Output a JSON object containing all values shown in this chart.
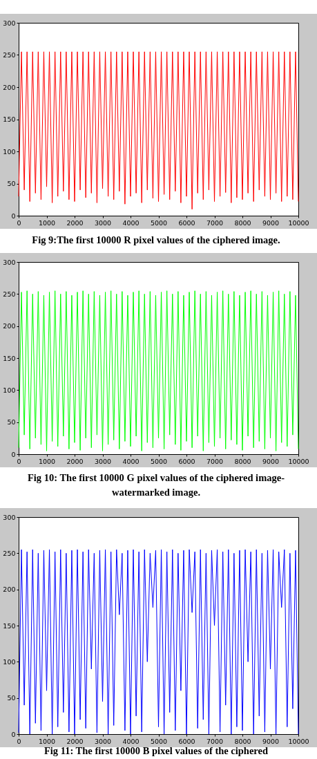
{
  "chart_data": [
    {
      "type": "line",
      "title": "Fig 9:The first 10000 R pixel values of the ciphered image.",
      "xlim": [
        0,
        10000
      ],
      "xticks": [
        0,
        1000,
        2000,
        3000,
        4000,
        5000,
        6000,
        7000,
        8000,
        9000,
        10000
      ],
      "ylim": [
        0,
        300
      ],
      "yticks": [
        0,
        50,
        100,
        150,
        200,
        250,
        300
      ],
      "grid": false,
      "x": [
        0,
        100,
        200,
        300,
        400,
        500,
        600,
        700,
        800,
        900,
        1000,
        1100,
        1200,
        1300,
        1400,
        1500,
        1600,
        1700,
        1800,
        1900,
        2000,
        2100,
        2200,
        2300,
        2400,
        2500,
        2600,
        2700,
        2800,
        2900,
        3000,
        3100,
        3200,
        3300,
        3400,
        3500,
        3600,
        3700,
        3800,
        3900,
        4000,
        4100,
        4200,
        4300,
        4400,
        4500,
        4600,
        4700,
        4800,
        4900,
        5000,
        5100,
        5200,
        5300,
        5400,
        5500,
        5600,
        5700,
        5800,
        5900,
        6000,
        6100,
        6200,
        6300,
        6400,
        6500,
        6600,
        6700,
        6800,
        6900,
        7000,
        7100,
        7200,
        7300,
        7400,
        7500,
        7600,
        7700,
        7800,
        7900,
        8000,
        8100,
        8200,
        8300,
        8400,
        8500,
        8600,
        8700,
        8800,
        8900,
        9000,
        9100,
        9200,
        9300,
        9400,
        9500,
        9600,
        9700,
        9800,
        9900,
        10000
      ],
      "series": [
        {
          "color": "#ff0000",
          "values": [
            30,
            255,
            40,
            255,
            22,
            255,
            35,
            255,
            25,
            255,
            45,
            255,
            20,
            255,
            30,
            255,
            38,
            255,
            25,
            255,
            22,
            255,
            40,
            255,
            28,
            255,
            35,
            255,
            20,
            255,
            42,
            255,
            30,
            255,
            25,
            255,
            38,
            255,
            18,
            255,
            30,
            255,
            35,
            255,
            20,
            255,
            40,
            255,
            27,
            255,
            22,
            255,
            33,
            255,
            25,
            255,
            38,
            255,
            20,
            255,
            30,
            255,
            10,
            255,
            35,
            255,
            25,
            255,
            40,
            255,
            22,
            255,
            30,
            255,
            36,
            255,
            20,
            255,
            28,
            255,
            25,
            255,
            35,
            255,
            22,
            255,
            40,
            255,
            30,
            255,
            25,
            255,
            35,
            255,
            22,
            255,
            30,
            255,
            25,
            255,
            22
          ]
        }
      ]
    },
    {
      "type": "line",
      "title": "Fig 10: The first 10000 G pixel values of the ciphered image-watermarked image.",
      "xlim": [
        0,
        10000
      ],
      "xticks": [
        0,
        1000,
        2000,
        3000,
        4000,
        5000,
        6000,
        7000,
        8000,
        9000,
        10000
      ],
      "ylim": [
        0,
        300
      ],
      "yticks": [
        0,
        50,
        100,
        150,
        200,
        250,
        300
      ],
      "grid": false,
      "x": [
        0,
        100,
        200,
        300,
        400,
        500,
        600,
        700,
        800,
        900,
        1000,
        1100,
        1200,
        1300,
        1400,
        1500,
        1600,
        1700,
        1800,
        1900,
        2000,
        2100,
        2200,
        2300,
        2400,
        2500,
        2600,
        2700,
        2800,
        2900,
        3000,
        3100,
        3200,
        3300,
        3400,
        3500,
        3600,
        3700,
        3800,
        3900,
        4000,
        4100,
        4200,
        4300,
        4400,
        4500,
        4600,
        4700,
        4800,
        4900,
        5000,
        5100,
        5200,
        5300,
        5400,
        5500,
        5600,
        5700,
        5800,
        5900,
        6000,
        6100,
        6200,
        6300,
        6400,
        6500,
        6600,
        6700,
        6800,
        6900,
        7000,
        7100,
        7200,
        7300,
        7400,
        7500,
        7600,
        7700,
        7800,
        7900,
        8000,
        8100,
        8200,
        8300,
        8400,
        8500,
        8600,
        8700,
        8800,
        8900,
        9000,
        9100,
        9200,
        9300,
        9400,
        9500,
        9600,
        9700,
        9800,
        9900,
        10000
      ],
      "series": [
        {
          "color": "#00ff00",
          "values": [
            10,
            253,
            30,
            255,
            8,
            250,
            25,
            254,
            15,
            248,
            5,
            253,
            20,
            255,
            12,
            250,
            28,
            254,
            8,
            248,
            18,
            253,
            6,
            255,
            25,
            250,
            10,
            254,
            30,
            248,
            5,
            253,
            15,
            255,
            22,
            250,
            8,
            254,
            20,
            248,
            12,
            253,
            28,
            255,
            5,
            250,
            18,
            254,
            10,
            248,
            25,
            253,
            8,
            255,
            30,
            250,
            15,
            254,
            6,
            248,
            20,
            253,
            10,
            255,
            28,
            250,
            5,
            254,
            18,
            248,
            12,
            253,
            25,
            255,
            8,
            250,
            22,
            254,
            15,
            248,
            6,
            253,
            28,
            255,
            10,
            250,
            20,
            254,
            8,
            248,
            25,
            253,
            5,
            255,
            18,
            250,
            12,
            254,
            30,
            248,
            8
          ]
        }
      ]
    },
    {
      "type": "line",
      "title": "Fig 11: The first 10000 B pixel values of the ciphered",
      "xlim": [
        0,
        10000
      ],
      "xticks": [
        0,
        1000,
        2000,
        3000,
        4000,
        5000,
        6000,
        7000,
        8000,
        9000,
        10000
      ],
      "ylim": [
        0,
        300
      ],
      "yticks": [
        0,
        50,
        100,
        150,
        200,
        250,
        300
      ],
      "grid": false,
      "x": [
        0,
        100,
        200,
        300,
        400,
        500,
        600,
        700,
        800,
        900,
        1000,
        1100,
        1200,
        1300,
        1400,
        1500,
        1600,
        1700,
        1800,
        1900,
        2000,
        2100,
        2200,
        2300,
        2400,
        2500,
        2600,
        2700,
        2800,
        2900,
        3000,
        3100,
        3200,
        3300,
        3400,
        3500,
        3600,
        3700,
        3800,
        3900,
        4000,
        4100,
        4200,
        4300,
        4400,
        4500,
        4600,
        4700,
        4800,
        4900,
        5000,
        5100,
        5200,
        5300,
        5400,
        5500,
        5600,
        5700,
        5800,
        5900,
        6000,
        6100,
        6200,
        6300,
        6400,
        6500,
        6600,
        6700,
        6800,
        6900,
        7000,
        7100,
        7200,
        7300,
        7400,
        7500,
        7600,
        7700,
        7800,
        7900,
        8000,
        8100,
        8200,
        8300,
        8400,
        8500,
        8600,
        8700,
        8800,
        8900,
        9000,
        9100,
        9200,
        9300,
        9400,
        9500,
        9600,
        9700,
        9800,
        9900,
        10000
      ],
      "series": [
        {
          "color": "#0000ff",
          "values": [
            2,
            255,
            40,
            252,
            0,
            255,
            15,
            250,
            5,
            254,
            60,
            255,
            0,
            252,
            10,
            255,
            30,
            250,
            3,
            254,
            0,
            255,
            20,
            252,
            8,
            255,
            90,
            250,
            2,
            254,
            45,
            255,
            0,
            252,
            12,
            255,
            165,
            250,
            5,
            254,
            0,
            255,
            25,
            252,
            3,
            255,
            100,
            250,
            175,
            254,
            10,
            255,
            0,
            252,
            30,
            255,
            5,
            250,
            60,
            254,
            0,
            255,
            168,
            252,
            8,
            255,
            20,
            250,
            0,
            254,
            150,
            255,
            3,
            252,
            40,
            255,
            0,
            250,
            10,
            254,
            5,
            255,
            100,
            252,
            0,
            255,
            25,
            250,
            3,
            254,
            90,
            255,
            0,
            252,
            175,
            255,
            10,
            250,
            35,
            254,
            0
          ]
        }
      ]
    }
  ]
}
